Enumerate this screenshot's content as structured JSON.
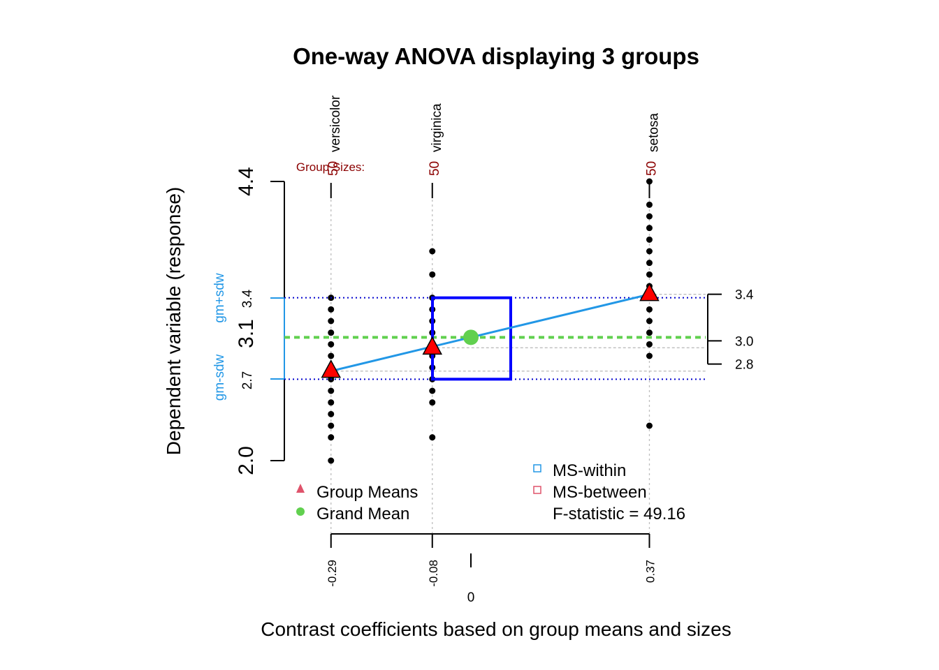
{
  "chart_data": {
    "type": "scatter",
    "title": "One-way ANOVA displaying 3 groups",
    "xlabel": "Contrast coefficients based on group means and sizes",
    "ylabel": "Dependent variable (response)",
    "ylim": [
      2.0,
      4.4
    ],
    "y_ticks": [
      "2.0",
      "4.4"
    ],
    "y_inner_ticks": [
      {
        "value": 2.7,
        "label": "2.7",
        "size": "small"
      },
      {
        "value": 3.1,
        "label": "3.1",
        "size": "large"
      },
      {
        "value": 3.4,
        "label": "3.4",
        "size": "small"
      }
    ],
    "sd_labels": {
      "plus": "gm+sdw",
      "minus": "gm-sdw"
    },
    "group_sizes_label": "Group Sizes:",
    "groups": [
      {
        "name": "versicolor",
        "n": "50",
        "contrast": -0.29,
        "contrast_label": "-0.29",
        "mean": 2.77,
        "points": [
          2.0,
          2.2,
          2.3,
          2.4,
          2.5,
          2.6,
          2.7,
          2.8,
          2.9,
          3.0,
          3.1,
          3.2,
          3.3,
          3.4
        ]
      },
      {
        "name": "virginica",
        "n": "50",
        "contrast": -0.08,
        "contrast_label": "-0.08",
        "mean": 2.97,
        "points": [
          2.2,
          2.5,
          2.6,
          2.7,
          2.8,
          2.9,
          3.0,
          3.1,
          3.2,
          3.3,
          3.4,
          3.6,
          3.8
        ]
      },
      {
        "name": "setosa",
        "n": "50",
        "contrast": 0.37,
        "contrast_label": "0.37",
        "mean": 3.43,
        "points": [
          2.3,
          2.9,
          3.0,
          3.1,
          3.2,
          3.3,
          3.4,
          3.5,
          3.6,
          3.7,
          3.8,
          3.9,
          4.0,
          4.1,
          4.2,
          4.4
        ]
      }
    ],
    "grand_mean": 3.06,
    "grand_mean_x": 0,
    "sd_within_band": [
      2.7,
      3.4
    ],
    "ms_square": {
      "x0": -0.08,
      "x1": 0.08,
      "y0": 2.7,
      "y1": 3.4
    },
    "right_scale": [
      {
        "value": 3.43,
        "label": "3.4"
      },
      {
        "value": 3.03,
        "label": "3.0"
      },
      {
        "value": 2.83,
        "label": "2.8"
      }
    ],
    "zero_label": "0",
    "legend_left": [
      {
        "label": "Group Means",
        "marker": "triangle",
        "color": "#DF536B"
      },
      {
        "label": "Grand Mean",
        "marker": "circle",
        "color": "#61D04F"
      }
    ],
    "legend_right": [
      {
        "label": "MS-within",
        "marker": "square",
        "color": "#2297E6"
      },
      {
        "label": "MS-between",
        "marker": "square",
        "color": "#DF536B"
      }
    ],
    "f_statistic_label": "F-statistic =  49.16",
    "colors": {
      "group_mean_fill": "#FF0000",
      "grand_mean": "#61D04F",
      "sd_lines": "#0000CD",
      "ms_square": "#0000FF",
      "regression_line": "#2297E6",
      "sd_axis": "#2297E6",
      "group_size": "#8B0000"
    }
  }
}
